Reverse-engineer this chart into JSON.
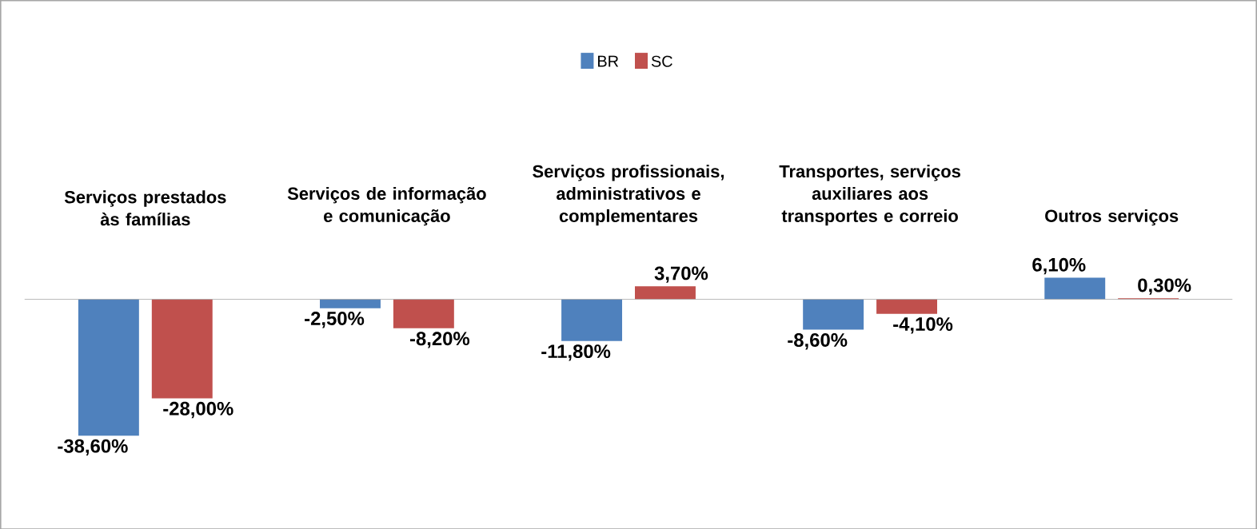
{
  "chart_data": {
    "type": "bar",
    "categories": [
      "Serviços prestados às famílias",
      "Serviços de informação e comunicação",
      "Serviços profissionais, administrativos e complementares",
      "Transportes, serviços auxiliares aos transportes e correio",
      "Outros serviços"
    ],
    "series": [
      {
        "name": "BR",
        "color": "#4f81bd",
        "values": [
          -38.6,
          -2.5,
          -11.8,
          -8.6,
          6.1
        ],
        "value_labels": [
          "-38,60%",
          "-2,50%",
          "-11,80%",
          "-8,60%",
          "6,10%"
        ]
      },
      {
        "name": "SC",
        "color": "#c0504d",
        "values": [
          -28.0,
          -8.2,
          3.7,
          -4.1,
          0.3
        ],
        "value_labels": [
          "-28,00%",
          "-8,20%",
          "3,70%",
          "-4,10%",
          "0,30%"
        ]
      }
    ],
    "legend": "top"
  }
}
